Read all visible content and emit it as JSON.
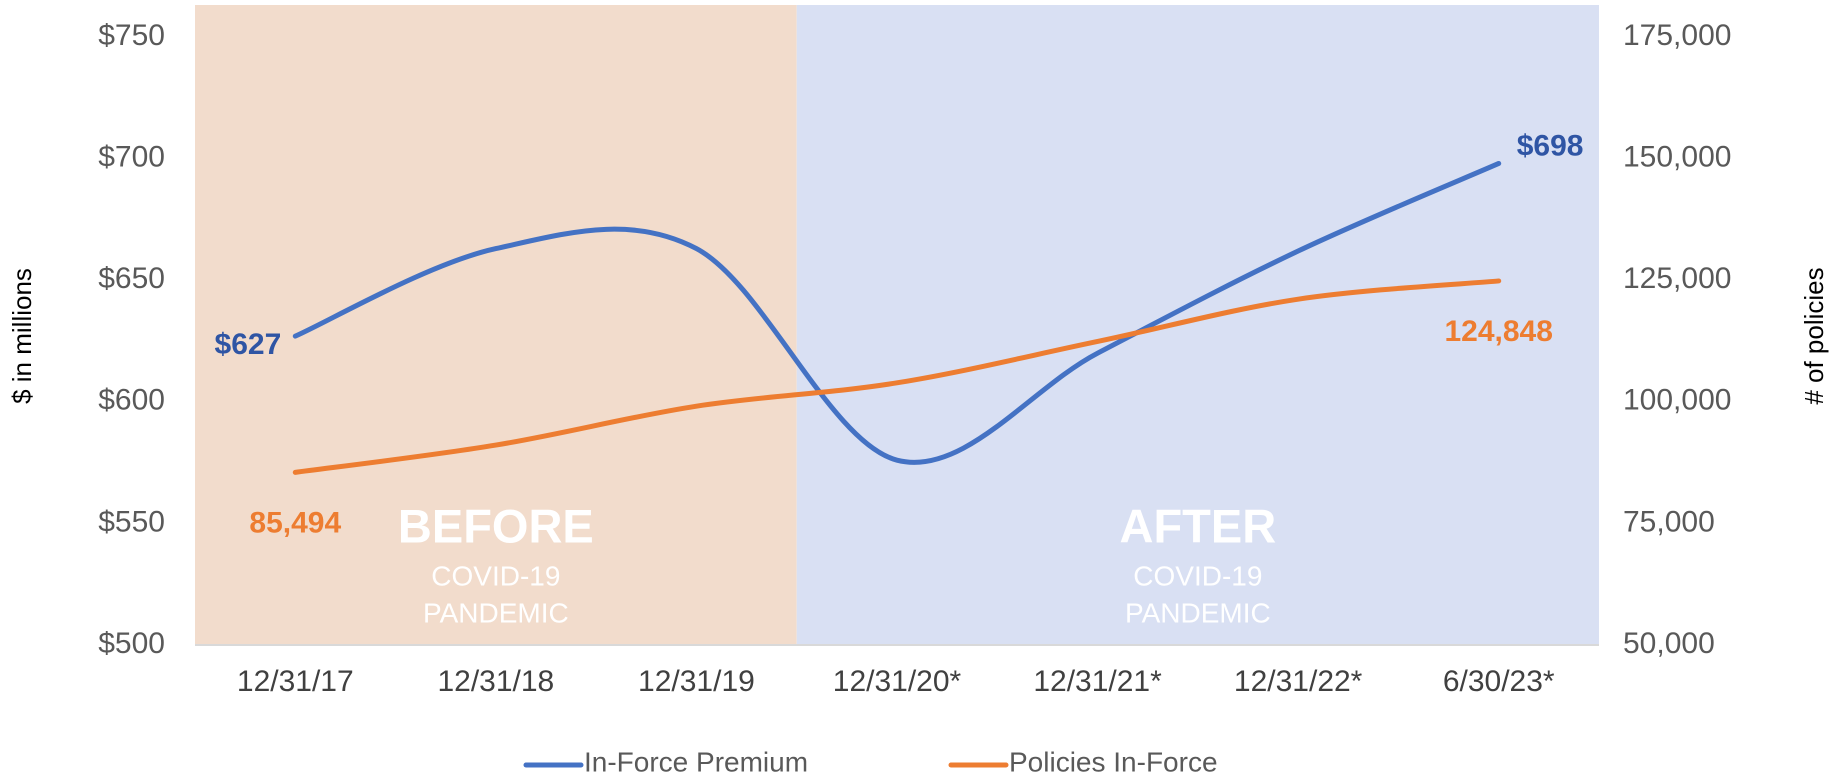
{
  "chart_data": {
    "type": "line",
    "y_axis_label": "$ in millions",
    "y2_axis_label": "# of policies",
    "categories": [
      "12/31/17",
      "12/31/18",
      "12/31/19",
      "12/31/20*",
      "12/31/21*",
      "12/31/22*",
      "6/30/23*"
    ],
    "series": [
      {
        "name": "In-Force Premium",
        "color": "#4472c4",
        "axis": "y",
        "values": [
          627,
          663,
          663,
          576,
          620,
          662,
          698
        ],
        "value_labels": [
          "$627",
          null,
          null,
          null,
          null,
          null,
          "$698"
        ],
        "label_color": "#2f55a4"
      },
      {
        "name": "Policies In-Force",
        "color": "#ed7d31",
        "axis": "y2",
        "values": [
          85494,
          91100,
          99100,
          103900,
          112400,
          121100,
          124848
        ],
        "value_labels": [
          "85,494",
          null,
          null,
          null,
          null,
          null,
          "124,848"
        ],
        "label_color": "#ed7d31"
      }
    ],
    "regions": [
      {
        "label": "BEFORE",
        "sublabels": [
          "COVID-19",
          "PANDEMIC"
        ],
        "color": "#f2dccc",
        "from": 0,
        "to": 2
      },
      {
        "label": "AFTER",
        "sublabels": [
          "COVID-19",
          "PANDEMIC"
        ],
        "color": "#d9e0f3",
        "from": 3,
        "to": 6
      }
    ],
    "ylim": [
      500,
      750
    ],
    "yticks": [
      {
        "value": 500,
        "label": "$500"
      },
      {
        "value": 550,
        "label": "$550"
      },
      {
        "value": 600,
        "label": "$600"
      },
      {
        "value": 650,
        "label": "$650"
      },
      {
        "value": 700,
        "label": "$700"
      },
      {
        "value": 750,
        "label": "$750"
      }
    ],
    "y2lim": [
      50000,
      175000
    ],
    "y2ticks": [
      {
        "value": 50000,
        "label": "50,000"
      },
      {
        "value": 75000,
        "label": "75,000"
      },
      {
        "value": 100000,
        "label": "100,000"
      },
      {
        "value": 125000,
        "label": "125,000"
      },
      {
        "value": 150000,
        "label": "150,000"
      },
      {
        "value": 175000,
        "label": "175,000"
      }
    ],
    "legend": "bottom",
    "grid": false
  }
}
